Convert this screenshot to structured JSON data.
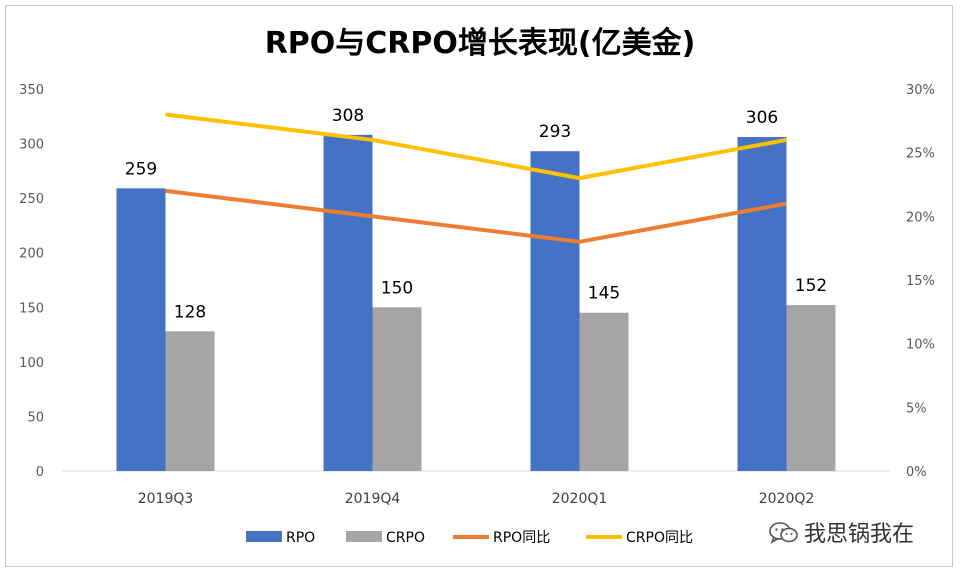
{
  "chart_data": {
    "type": "bar",
    "title": "RPO与CRPO增长表现(亿美金)",
    "categories": [
      "2019Q3",
      "2019Q4",
      "2020Q1",
      "2020Q2"
    ],
    "series": [
      {
        "name": "RPO",
        "type": "bar",
        "axis": "left",
        "color": "#4472C4",
        "values": [
          259,
          308,
          293,
          306
        ]
      },
      {
        "name": "CRPO",
        "type": "bar",
        "axis": "left",
        "color": "#A5A5A5",
        "values": [
          128,
          150,
          145,
          152
        ]
      },
      {
        "name": "RPO同比",
        "type": "line",
        "axis": "right",
        "color": "#ED7D31",
        "values": [
          22,
          20,
          18,
          21
        ]
      },
      {
        "name": "CRPO同比",
        "type": "line",
        "axis": "right",
        "color": "#FFC000",
        "values": [
          28,
          26,
          23,
          26
        ]
      }
    ],
    "ylim_left": [
      0,
      350
    ],
    "yticks_left": [
      "0",
      "50",
      "100",
      "150",
      "200",
      "250",
      "300",
      "350"
    ],
    "ylim_right": [
      0,
      30
    ],
    "yticks_right": [
      "0%",
      "5%",
      "10%",
      "15%",
      "20%",
      "25%",
      "30%"
    ],
    "legend_position": "bottom",
    "grid": false
  },
  "watermark": {
    "icon": "wechat-icon",
    "text": "我思锅我在"
  }
}
